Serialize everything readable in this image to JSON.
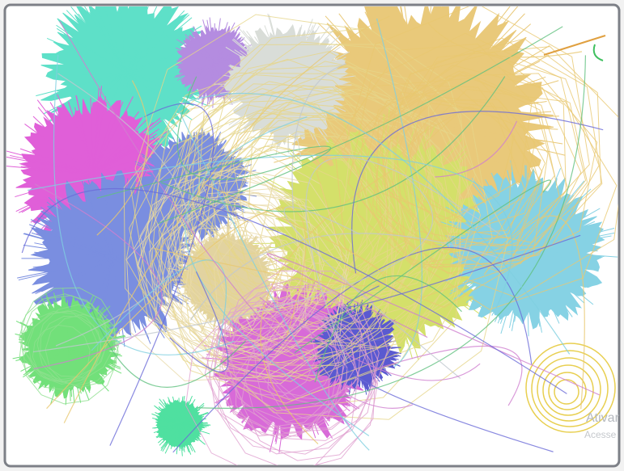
{
  "watermark": {
    "title": "Ativar",
    "subtitle": "Acesse"
  }
}
